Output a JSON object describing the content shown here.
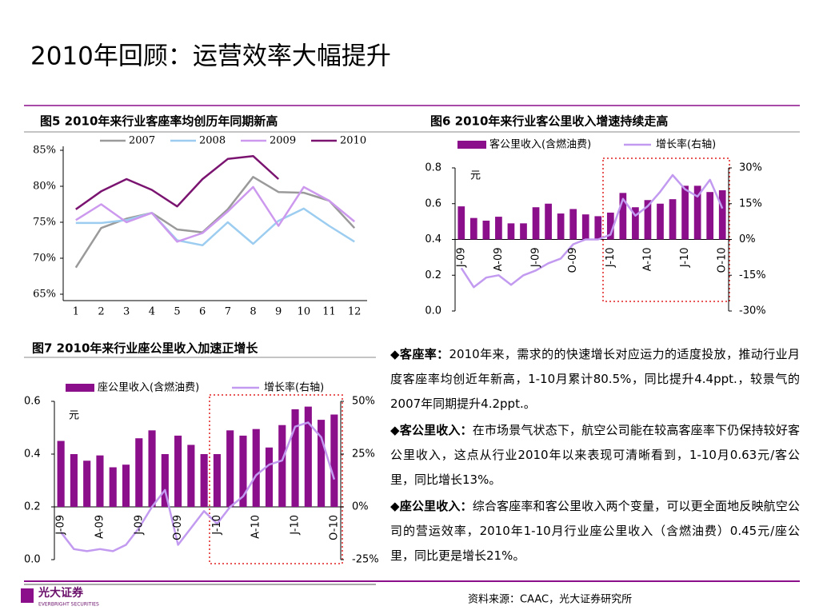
{
  "title": "2010年回顾：运营效率大幅提升",
  "chart_data": [
    {
      "type": "line",
      "title": "图5  2010年来行业客座率均创历年同期新高",
      "categories": [
        "1",
        "2",
        "3",
        "4",
        "5",
        "6",
        "7",
        "8",
        "9",
        "10",
        "11",
        "12"
      ],
      "ylim": [
        65,
        85
      ],
      "yticks": [
        {
          "value": 65,
          "label": "65%"
        },
        {
          "value": 70,
          "label": "70%"
        },
        {
          "value": 75,
          "label": "75%"
        },
        {
          "value": 80,
          "label": "80%"
        },
        {
          "value": 85,
          "label": "85%"
        }
      ],
      "series": [
        {
          "name": "2007",
          "color": "#9a9a9a",
          "values": [
            68.7,
            74.2,
            75.5,
            76.3,
            74.0,
            73.6,
            76.8,
            81.3,
            79.2,
            79.1,
            78.0,
            74.2
          ]
        },
        {
          "name": "2008",
          "color": "#9ccdf0",
          "values": [
            74.9,
            74.9,
            75.3,
            76.3,
            72.5,
            71.8,
            75.0,
            72.0,
            75.2,
            76.9,
            74.5,
            72.3
          ]
        },
        {
          "name": "2009",
          "color": "#cc99ee",
          "values": [
            75.3,
            77.5,
            75.0,
            76.3,
            72.3,
            73.5,
            76.5,
            79.9,
            74.5,
            79.9,
            78.0,
            75.1
          ]
        },
        {
          "name": "2010",
          "color": "#7a1470",
          "values": [
            76.8,
            79.3,
            81.0,
            79.5,
            77.2,
            81.0,
            83.8,
            84.2,
            81.0,
            null,
            null,
            null
          ]
        }
      ]
    },
    {
      "type": "combo",
      "title": "图6  2010年来行业客公里收入增速持续走高",
      "unit": "元",
      "categories": [
        "J-09",
        null,
        null,
        "A-09",
        null,
        null,
        "J-09",
        null,
        null,
        "O-09",
        null,
        null,
        "J-10",
        null,
        null,
        "A-10",
        null,
        null,
        "J-10",
        null,
        null,
        "O-10"
      ],
      "ylim": [
        0,
        0.8
      ],
      "yticks": [
        {
          "value": 0,
          "label": "0.0"
        },
        0.2,
        0.4,
        0.6,
        0.8
      ],
      "y2lim": [
        -30,
        30
      ],
      "y2ticks": [
        {
          "value": -30,
          "label": "-30%"
        },
        {
          "value": -15,
          "label": "-15%"
        },
        {
          "value": 0,
          "label": "0%"
        },
        {
          "value": 15,
          "label": "15%"
        },
        {
          "value": 30,
          "label": "30%"
        }
      ],
      "series": [
        {
          "name": "客公里收入(含燃油费)",
          "color": "#8b0f8b",
          "values": [
            0.585,
            0.52,
            0.505,
            0.527,
            0.49,
            0.49,
            0.58,
            0.6,
            0.545,
            0.57,
            0.54,
            0.53,
            0.55,
            0.66,
            0.58,
            0.62,
            0.6,
            0.625,
            0.7,
            0.7,
            0.665,
            0.675
          ]
        },
        {
          "name": "增长率(右轴)",
          "color": "#c29af0",
          "axis": "y2",
          "values": [
            -12,
            -20,
            -16,
            -15,
            -19,
            -15,
            -13,
            -10,
            -8,
            -2,
            0,
            0,
            2,
            17,
            10,
            14,
            20,
            27,
            21,
            18,
            25,
            13
          ]
        }
      ]
    },
    {
      "type": "combo",
      "title": "图7  2010年来行业座公里收入加速正增长",
      "unit": "元",
      "categories": [
        "J-09",
        null,
        null,
        "A-09",
        null,
        null,
        "J-09",
        null,
        null,
        "O-09",
        null,
        null,
        "J-10",
        null,
        null,
        "A-10",
        null,
        null,
        "J-10",
        null,
        null,
        "O-10"
      ],
      "ylim": [
        0,
        0.6
      ],
      "yticks": [
        {
          "value": 0,
          "label": "0.0"
        },
        0.2,
        0.4,
        0.6
      ],
      "y2lim": [
        -25,
        50
      ],
      "y2ticks": [
        {
          "value": -25,
          "label": "-25%"
        },
        {
          "value": 0,
          "label": "0%"
        },
        {
          "value": 25,
          "label": "25%"
        },
        {
          "value": 50,
          "label": "50%"
        }
      ],
      "series": [
        {
          "name": "座公里收入(含燃油费)",
          "color": "#8b0f8b",
          "values": [
            0.45,
            0.4,
            0.375,
            0.395,
            0.35,
            0.36,
            0.46,
            0.49,
            0.4,
            0.47,
            0.435,
            0.4,
            0.4,
            0.49,
            0.47,
            0.495,
            0.425,
            0.51,
            0.57,
            0.58,
            0.53,
            0.55
          ]
        },
        {
          "name": "增长率(右轴)",
          "color": "#c29af0",
          "axis": "y2",
          "values": [
            -12,
            -20,
            -21,
            -20,
            -21,
            -18,
            -10,
            0,
            8,
            -18,
            -10,
            -2,
            -8,
            0,
            5,
            15,
            20,
            22,
            38,
            40,
            33,
            13
          ]
        }
      ]
    }
  ],
  "notes": [
    {
      "label": "◆客座率：",
      "text": "2010年来，需求的的快速增长对应运力的适度投放，推动行业月度客座率均创近年新高，1-10月累计80.5%，同比提升4.4ppt.，较景气的2007年同期提升4.2ppt.。"
    },
    {
      "label": "◆客公里收入：",
      "text": "在市场景气状态下，航空公司能在较高客座率下仍保持较好客公里收入，这点从行业2010年以来表现可清晰看到，1-10月0.63元/客公里，同比增长13%。"
    },
    {
      "label": "◆座公里收入：",
      "text": "综合客座率和客公里收入两个变量，可以更全面地反映航空公司的营运效率，2010年1-10月行业座公里收入（含燃油费）0.45元/座公里，同比更是增长21%。"
    }
  ],
  "logo": {
    "name": "光大证券",
    "subtitle": "EVERBRIGHT SECURITIES"
  },
  "source": "资料来源：CAAC，光大证券研究所"
}
